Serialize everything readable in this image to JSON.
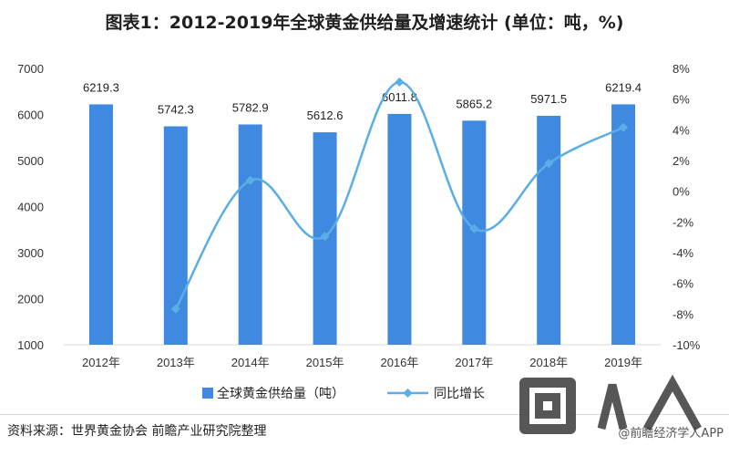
{
  "title": "图表1：2012-2019年全球黄金供给量及增速统计 (单位：吨，%)",
  "footer": {
    "source": "资料来源：世界黄金协会 前瞻产业研究院整理",
    "credit": "@前瞻经济学人APP"
  },
  "colors": {
    "bar": "#3f8ae0",
    "line": "#5aaee6",
    "grid": "#d9d9d9"
  },
  "chart_data": {
    "type": "bar",
    "categories": [
      "2012年",
      "2013年",
      "2014年",
      "2015年",
      "2016年",
      "2017年",
      "2018年",
      "2019年"
    ],
    "series": [
      {
        "name": "全球黄金供给量（吨）",
        "type": "bar",
        "axis": "left",
        "values": [
          6219.3,
          5742.3,
          5782.9,
          5612.6,
          6011.8,
          5865.2,
          5971.5,
          6219.4
        ],
        "labels": [
          "6219.3",
          "5742.3",
          "5782.9",
          "5612.6",
          "6011.8",
          "5865.2",
          "5971.5",
          "6219.4"
        ]
      },
      {
        "name": "同比增长",
        "type": "line",
        "axis": "right",
        "values": [
          null,
          -7.67,
          0.71,
          -2.94,
          7.11,
          -2.44,
          1.81,
          4.15
        ]
      }
    ],
    "ylim_left": [
      1000,
      7000
    ],
    "yticks_left": [
      "1000",
      "2000",
      "3000",
      "4000",
      "5000",
      "6000",
      "7000"
    ],
    "ylim_right": [
      -10,
      8
    ],
    "yticks_right": [
      "-10%",
      "-8%",
      "-6%",
      "-4%",
      "-2%",
      "0%",
      "2%",
      "4%",
      "6%",
      "8%"
    ],
    "grid": false,
    "legend_position": "bottom"
  }
}
